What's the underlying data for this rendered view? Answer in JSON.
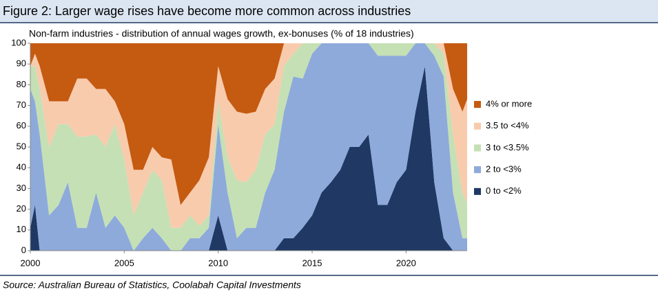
{
  "chart_data": {
    "type": "stacked_area",
    "title": "Figure 2: Larger wage rises have become more common across industries",
    "subtitle": "Non-farm industries - distribution of annual wages growth, ex-bonuses  (% of 18 industries)",
    "source": "Source: Australian Bureau of Statistics, Coolabah Capital Investments",
    "x": [
      2000,
      2000.25,
      2000.5,
      2001,
      2001.5,
      2002,
      2002.5,
      2003,
      2003.5,
      2004,
      2004.5,
      2005,
      2005.5,
      2006,
      2006.5,
      2007,
      2007.5,
      2008,
      2008.5,
      2009,
      2009.5,
      2010,
      2010.5,
      2011,
      2011.5,
      2012,
      2012.5,
      2013,
      2013.5,
      2014,
      2014.5,
      2015,
      2015.5,
      2016,
      2016.5,
      2017,
      2017.5,
      2018,
      2018.5,
      2019,
      2019.5,
      2020,
      2020.5,
      2021,
      2021.5,
      2022,
      2022.5,
      2023,
      2023.25
    ],
    "series": [
      {
        "name": "0 to <2%",
        "color": "#1f3864",
        "values": [
          11,
          22,
          0,
          0,
          0,
          0,
          0,
          0,
          0,
          0,
          0,
          0,
          0,
          0,
          0,
          0,
          0,
          0,
          0,
          0,
          0,
          17,
          0,
          0,
          0,
          0,
          0,
          0,
          6,
          6,
          11,
          17,
          28,
          33,
          39,
          50,
          50,
          56,
          22,
          22,
          33,
          39,
          67,
          89,
          33,
          6,
          0,
          0,
          0
        ]
      },
      {
        "name": "2 to <3%",
        "color": "#8eaadb",
        "values": [
          67,
          50,
          56,
          17,
          22,
          33,
          11,
          11,
          28,
          11,
          17,
          11,
          0,
          6,
          11,
          6,
          0,
          0,
          6,
          6,
          11,
          44,
          28,
          6,
          11,
          11,
          28,
          39,
          61,
          78,
          72,
          78,
          72,
          67,
          61,
          50,
          50,
          44,
          72,
          72,
          61,
          55,
          33,
          11,
          61,
          78,
          28,
          6,
          6
        ]
      },
      {
        "name": "3 to <3.5%",
        "color": "#c5e0b4",
        "values": [
          11,
          17,
          22,
          33,
          39,
          28,
          44,
          44,
          28,
          39,
          44,
          33,
          17,
          22,
          28,
          28,
          11,
          11,
          11,
          6,
          6,
          11,
          17,
          28,
          22,
          28,
          28,
          22,
          22,
          11,
          17,
          5,
          0,
          0,
          0,
          0,
          0,
          0,
          6,
          6,
          6,
          6,
          0,
          0,
          6,
          11,
          28,
          22,
          17
        ]
      },
      {
        "name": "3.5 to <4%",
        "color": "#f8cbad",
        "values": [
          0,
          6,
          11,
          22,
          11,
          11,
          28,
          28,
          22,
          28,
          11,
          17,
          22,
          11,
          11,
          11,
          33,
          11,
          11,
          22,
          28,
          17,
          28,
          33,
          33,
          28,
          22,
          22,
          11,
          5,
          0,
          0,
          0,
          0,
          0,
          0,
          0,
          0,
          0,
          0,
          0,
          0,
          0,
          0,
          0,
          5,
          22,
          39,
          50
        ]
      },
      {
        "name": "4% or more",
        "color": "#c55a11",
        "values": [
          11,
          5,
          11,
          28,
          28,
          28,
          17,
          17,
          22,
          22,
          28,
          39,
          61,
          61,
          50,
          55,
          56,
          78,
          72,
          66,
          55,
          11,
          27,
          33,
          34,
          33,
          22,
          17,
          0,
          0,
          0,
          0,
          0,
          0,
          0,
          0,
          0,
          0,
          0,
          0,
          0,
          0,
          0,
          0,
          0,
          0,
          22,
          33,
          27
        ]
      }
    ],
    "xlim": [
      2000,
      2023.25
    ],
    "xticks": [
      2000,
      2005,
      2010,
      2015,
      2020
    ],
    "ylim": [
      0,
      100
    ],
    "yticks": [
      0,
      10,
      20,
      30,
      40,
      50,
      60,
      70,
      80,
      90,
      100
    ]
  }
}
